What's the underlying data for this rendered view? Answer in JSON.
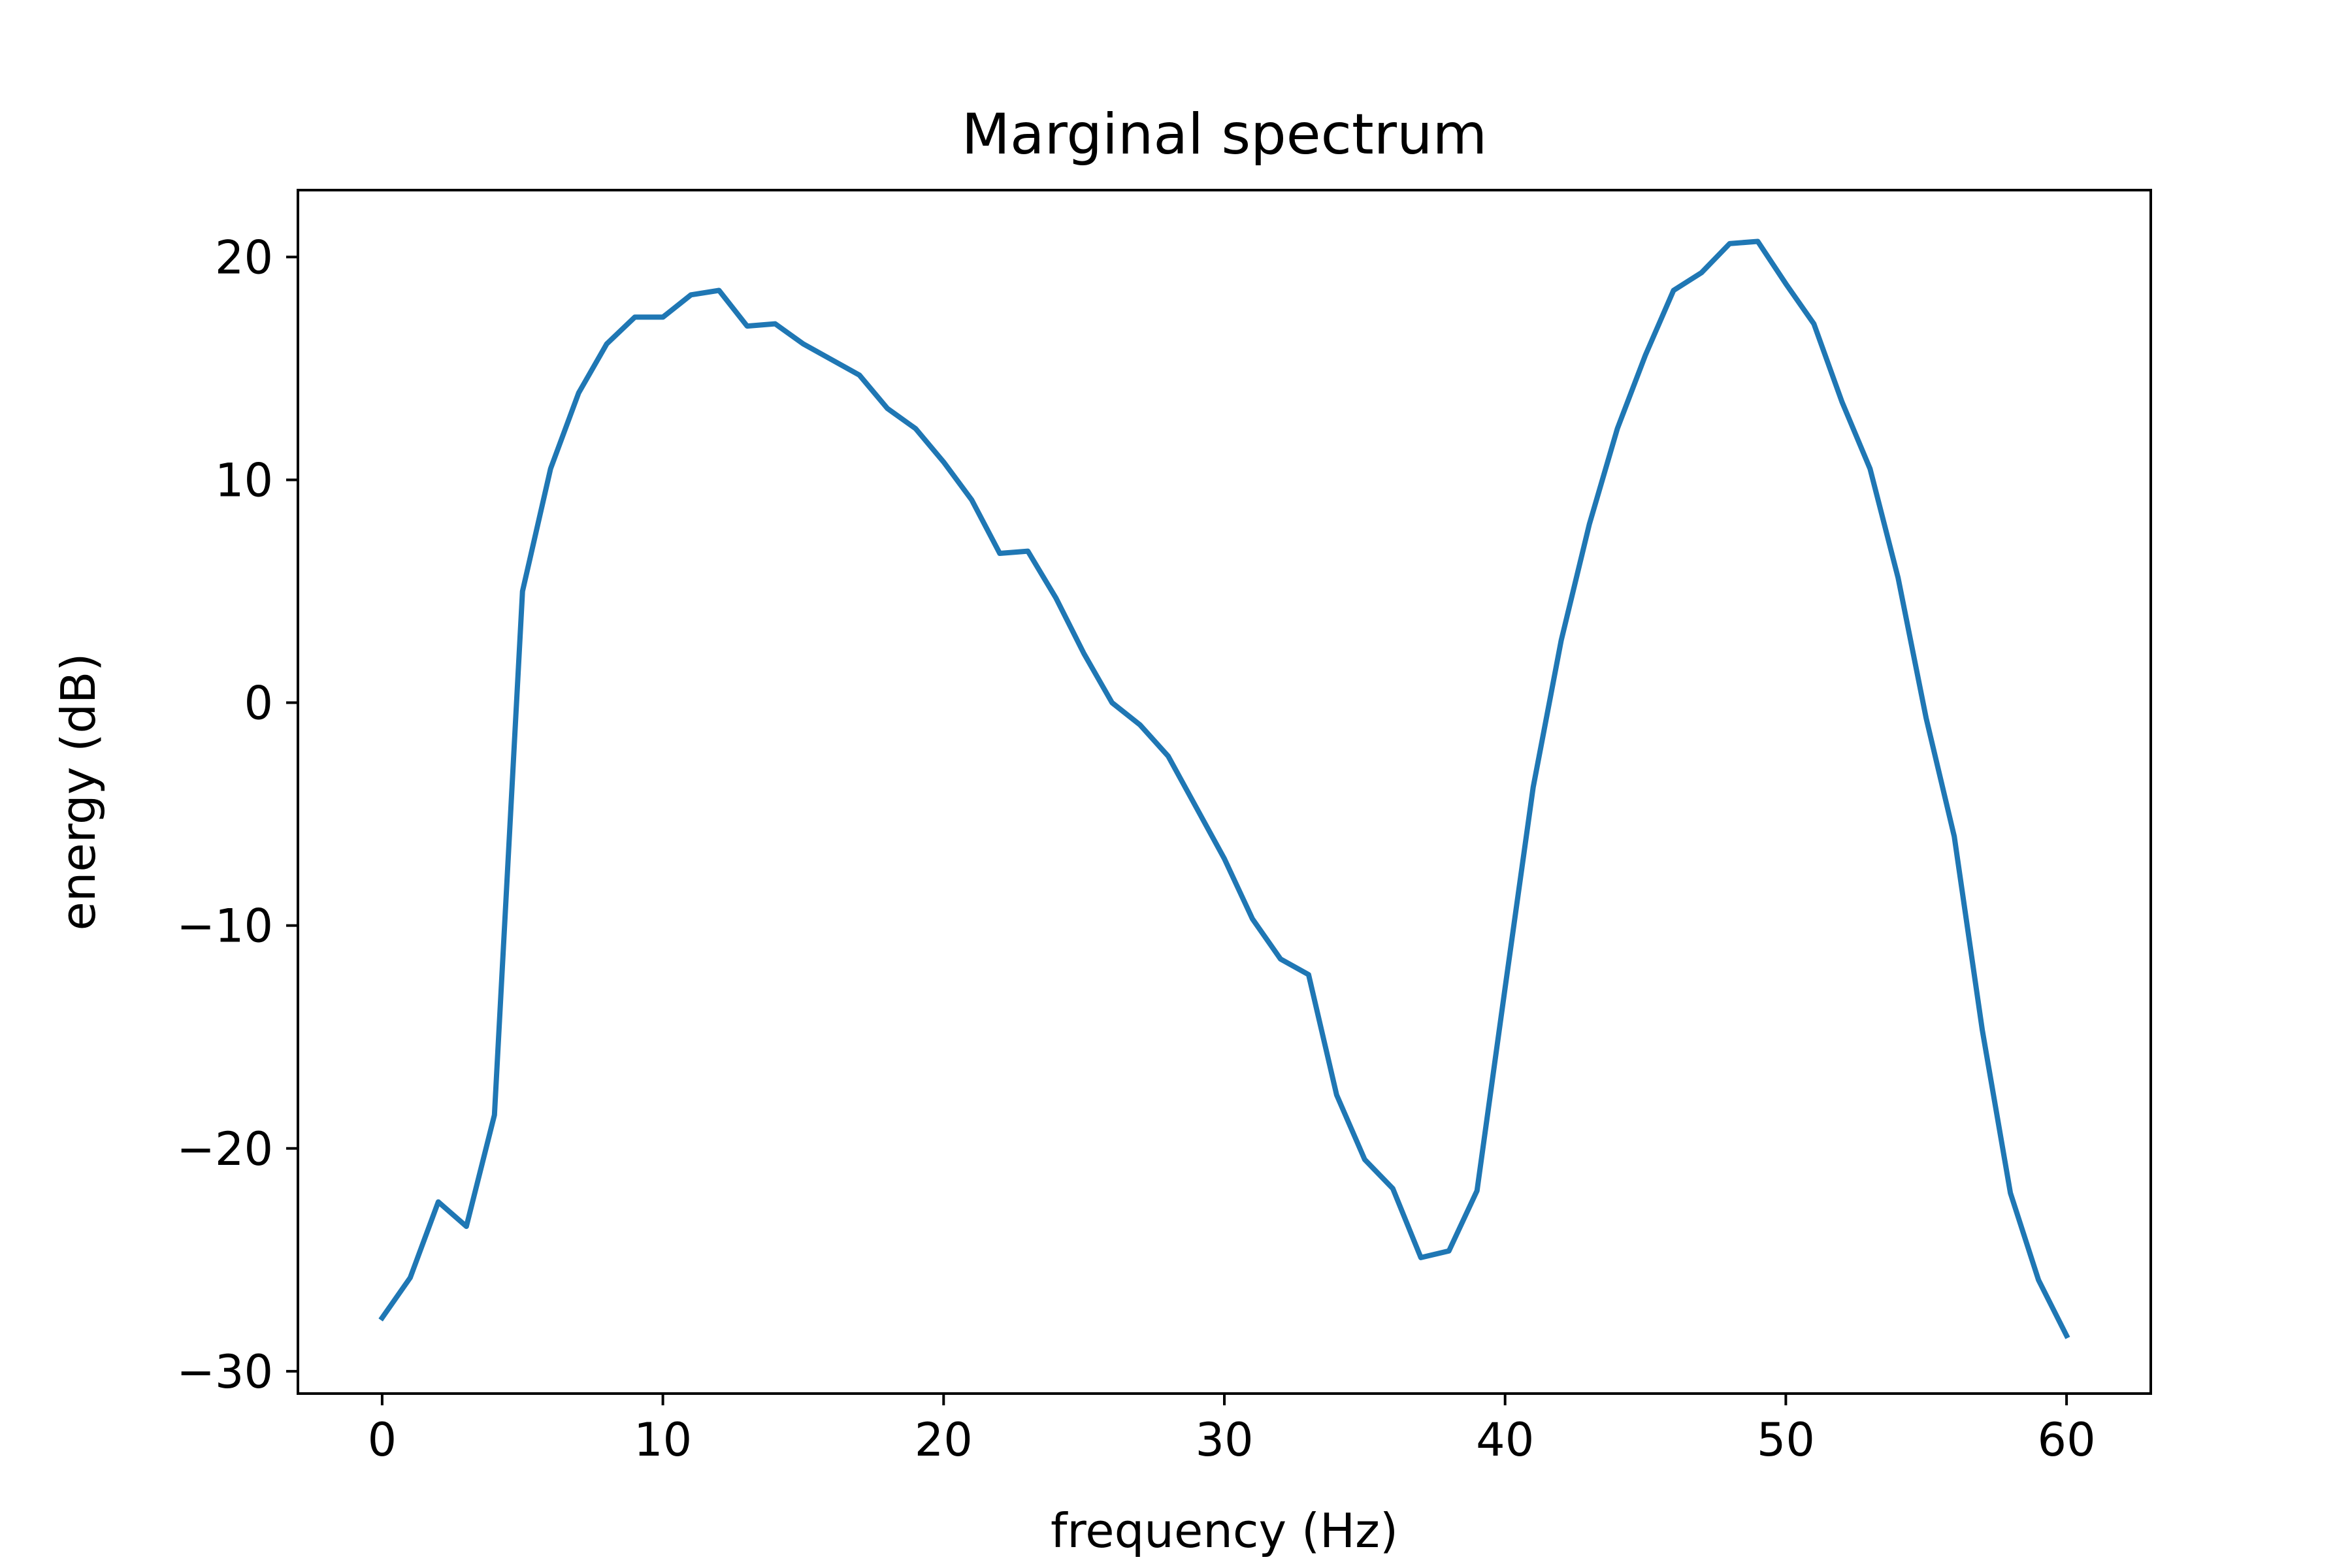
{
  "chart_data": {
    "type": "line",
    "title": "Marginal spectrum",
    "xlabel": "frequency (Hz)",
    "ylabel": "energy (dB)",
    "xlim": [
      -3,
      63
    ],
    "ylim": [
      -31,
      23
    ],
    "x_ticks": [
      0,
      10,
      20,
      30,
      40,
      50,
      60
    ],
    "y_ticks": [
      -30,
      -20,
      -10,
      0,
      10,
      20
    ],
    "x_tick_labels": [
      "0",
      "10",
      "20",
      "30",
      "40",
      "50",
      "60"
    ],
    "y_tick_labels": [
      "−30",
      "−20",
      "−10",
      "0",
      "10",
      "20"
    ],
    "grid": false,
    "legend": "none",
    "line_color": "#1f77b4",
    "series": [
      {
        "x": [
          0,
          1,
          2,
          3,
          4,
          5,
          6,
          7,
          8,
          9,
          10,
          11,
          12,
          13,
          14,
          15,
          16,
          17,
          18,
          19,
          20,
          21,
          22,
          23,
          24,
          25,
          26,
          27,
          28,
          29,
          30,
          31,
          32,
          33,
          34,
          35,
          36,
          37,
          38,
          39,
          40,
          41,
          42,
          43,
          44,
          45,
          46,
          47,
          48,
          49,
          50,
          51,
          52,
          53,
          54,
          55,
          56,
          57,
          58,
          59,
          60
        ],
        "y": [
          -27.6,
          -25.8,
          -22.4,
          -23.5,
          -18.5,
          5.0,
          10.5,
          13.9,
          16.1,
          17.3,
          17.3,
          18.3,
          18.5,
          16.9,
          17.0,
          16.1,
          15.4,
          14.7,
          13.2,
          12.3,
          10.8,
          9.1,
          6.7,
          6.8,
          4.7,
          2.2,
          0.0,
          -1.0,
          -2.4,
          -4.7,
          -7.0,
          -9.7,
          -11.5,
          -12.2,
          -17.6,
          -20.5,
          -21.8,
          -24.9,
          -24.6,
          -21.9,
          -12.8,
          -3.8,
          2.8,
          8.0,
          12.3,
          15.6,
          18.5,
          19.3,
          20.6,
          20.7,
          18.8,
          17.0,
          13.5,
          10.5,
          5.6,
          -0.7,
          -6.0,
          -14.7,
          -22.0,
          -25.9,
          -28.4
        ]
      }
    ]
  }
}
